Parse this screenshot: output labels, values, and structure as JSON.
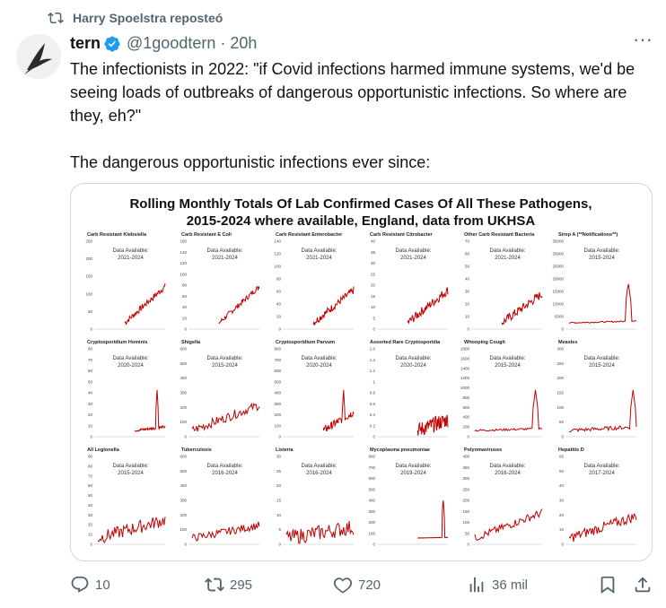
{
  "repost": {
    "text": "Harry Spoelstra reposteó"
  },
  "post": {
    "author_name": "tern",
    "handle": "@1goodtern",
    "time": "20h",
    "paragraphs": [
      "The infectionists in 2022: \"if Covid infections harmed immune systems, we'd be seeing loads of outbreaks of dangerous opportunistic infections. So where are they, eh?\"",
      "The dangerous opportunistic infections ever since:"
    ]
  },
  "figure": {
    "title_line1": "Rolling Monthly Totals Of Lab Confirmed Cases Of All These Pathogens,",
    "title_line2": "2015-2024 where available, England, data from UKHSA",
    "panels": [
      {
        "title": "Carb Resistant Klebsiella",
        "note1": "Data Available:",
        "note2": "2021-2024",
        "yticks": [
          "250",
          "200",
          "150",
          "100",
          "50",
          "0"
        ]
      },
      {
        "title": "Carb Resistant E Coli",
        "note1": "Data Available:",
        "note2": "2021-2024",
        "yticks": [
          "160",
          "140",
          "120",
          "100",
          "80",
          "60",
          "40",
          "20",
          "0"
        ]
      },
      {
        "title": "Carb Resistant Enterobacter",
        "note1": "Data Available:",
        "note2": "2021-2024",
        "yticks": [
          "140",
          "120",
          "100",
          "80",
          "60",
          "40",
          "20",
          "0"
        ]
      },
      {
        "title": "Carb Resistant Citrobacter",
        "note1": "Data Available:",
        "note2": "2021-2024",
        "yticks": [
          "40",
          "35",
          "30",
          "25",
          "20",
          "15",
          "10",
          "5",
          "0"
        ]
      },
      {
        "title": "Other Carb Resistant Bacteria",
        "note1": "Data Available:",
        "note2": "2021-2024",
        "yticks": [
          "70",
          "60",
          "50",
          "40",
          "30",
          "20",
          "10",
          "0"
        ]
      },
      {
        "title": "Strep A (**Notifications**)",
        "note1": "Data Available:",
        "note2": "2015-2024",
        "yticks": [
          "35000",
          "30000",
          "25000",
          "20000",
          "15000",
          "10000",
          "5000",
          "0"
        ]
      },
      {
        "title": "Cryptosporidium Hominis",
        "note1": "Data Available:",
        "note2": "2020-2024",
        "yticks": [
          "80",
          "70",
          "60",
          "50",
          "40",
          "30",
          "20",
          "10",
          "0"
        ]
      },
      {
        "title": "Shigella",
        "note1": "Data Available:",
        "note2": "2015-2024",
        "yticks": [
          "600",
          "500",
          "400",
          "300",
          "200",
          "100",
          "0"
        ]
      },
      {
        "title": "Cryptosporidium Parvum",
        "note1": "Data Available:",
        "note2": "2020-2024",
        "yticks": [
          "800",
          "700",
          "600",
          "500",
          "400",
          "300",
          "200",
          "100",
          "0"
        ]
      },
      {
        "title": "Assorted Rare Cryptosporidia",
        "note1": "Data Available:",
        "note2": "2020-2024",
        "yticks": [
          "1.6",
          "1.4",
          "1.2",
          "1",
          "0.8",
          "0.6",
          "0.4",
          "0.2",
          "0"
        ]
      },
      {
        "title": "Whooping Cough",
        "note1": "Data Available:",
        "note2": "2015-2024",
        "yticks": [
          "1800",
          "1600",
          "1400",
          "1200",
          "1000",
          "800",
          "600",
          "400",
          "200",
          "0"
        ]
      },
      {
        "title": "Measles",
        "note1": "Data Available:",
        "note2": "2015-2024",
        "yticks": [
          "300",
          "250",
          "200",
          "150",
          "100",
          "50",
          "0"
        ]
      },
      {
        "title": "All Legionella",
        "note1": "Data Available:",
        "note2": "2015-2024",
        "yticks": [
          "90",
          "80",
          "70",
          "60",
          "50",
          "40",
          "30",
          "20",
          "10",
          "0"
        ]
      },
      {
        "title": "Tuberculosis",
        "note1": "Data Available:",
        "note2": "2016-2024",
        "yticks": [
          "600",
          "500",
          "400",
          "300",
          "200",
          "100",
          "0"
        ]
      },
      {
        "title": "Listeria",
        "note1": "Data Available:",
        "note2": "2016-2024",
        "yticks": [
          "30",
          "25",
          "20",
          "15",
          "10",
          "5",
          "0"
        ]
      },
      {
        "title": "Mycoplasma pneumoniae",
        "note1": "Data Available:",
        "note2": "2019-2024",
        "yticks": [
          "800",
          "700",
          "600",
          "500",
          "400",
          "300",
          "200",
          "100",
          "0"
        ]
      },
      {
        "title": "Polyomaviruses",
        "note1": "Data Available:",
        "note2": "2016-2024",
        "yticks": [
          "400",
          "350",
          "300",
          "250",
          "200",
          "150",
          "100",
          "50",
          "0"
        ]
      },
      {
        "title": "Hepatitis D",
        "note1": "Data Available:",
        "note2": "2017-2024",
        "yticks": [
          "60",
          "50",
          "40",
          "30",
          "20",
          "10",
          "0"
        ]
      }
    ]
  },
  "actions": {
    "replies": "10",
    "reposts": "295",
    "likes": "720",
    "views": "36 mil"
  },
  "colors": {
    "accent": "#1d9bf0",
    "line": "#c00000",
    "muted": "#536471"
  }
}
